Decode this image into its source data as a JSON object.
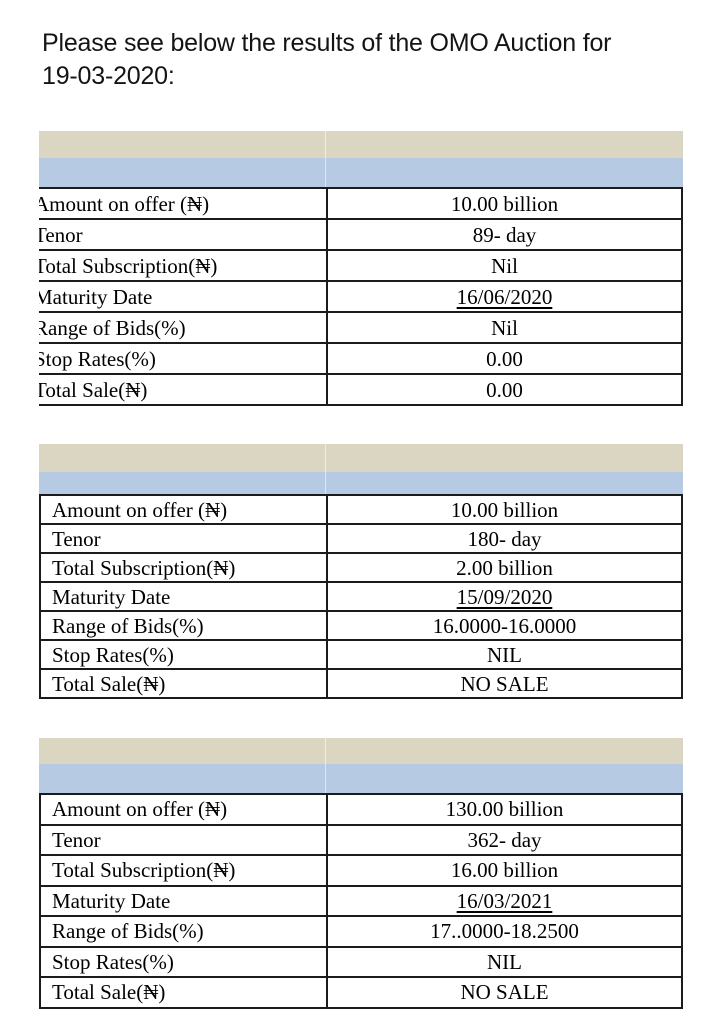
{
  "intro": {
    "line1": "Please see below the results of the OMO Auction for",
    "line2": "19-03-2020:"
  },
  "colors": {
    "band_tan": "#dbd6c1",
    "band_blue": "#b7cae3",
    "table_border": "#1b1b1b"
  },
  "tables": [
    {
      "id": "omo-auction-89-day",
      "rows": [
        {
          "label": "Amount on offer (₦)",
          "value": "10.00 billion"
        },
        {
          "label": "Tenor",
          "value": "89- day"
        },
        {
          "label": "Total Subscription(₦)",
          "value": "Nil"
        },
        {
          "label": "Maturity Date",
          "value": "16/06/2020",
          "underline": true
        },
        {
          "label": "Range of Bids(%)",
          "value": "Nil"
        },
        {
          "label": "Stop Rates(%)",
          "value": "0.00"
        },
        {
          "label": "Total Sale(₦)",
          "value": "0.00"
        }
      ]
    },
    {
      "id": "omo-auction-180-day",
      "rows": [
        {
          "label": "Amount on offer (₦)",
          "value": "10.00 billion"
        },
        {
          "label": "Tenor",
          "value": "180- day"
        },
        {
          "label": "Total Subscription(₦)",
          "value": "2.00 billion"
        },
        {
          "label": "Maturity Date",
          "value": "15/09/2020",
          "underline": true
        },
        {
          "label": "Range of Bids(%)",
          "value": "16.0000-16.0000"
        },
        {
          "label": "Stop Rates(%)",
          "value": "NIL"
        },
        {
          "label": "Total Sale(₦)",
          "value": "NO SALE"
        }
      ]
    },
    {
      "id": "omo-auction-362-day",
      "rows": [
        {
          "label": "Amount on offer (₦)",
          "value": "130.00 billion"
        },
        {
          "label": "Tenor",
          "value": "362- day"
        },
        {
          "label": "Total Subscription(₦)",
          "value": "16.00 billion"
        },
        {
          "label": "Maturity Date",
          "value": "16/03/2021",
          "underline": true
        },
        {
          "label": "Range of Bids(%)",
          "value": "17..0000-18.2500"
        },
        {
          "label": "Stop Rates(%)",
          "value": "NIL"
        },
        {
          "label": "Total Sale(₦)",
          "value": "NO SALE"
        }
      ]
    }
  ]
}
